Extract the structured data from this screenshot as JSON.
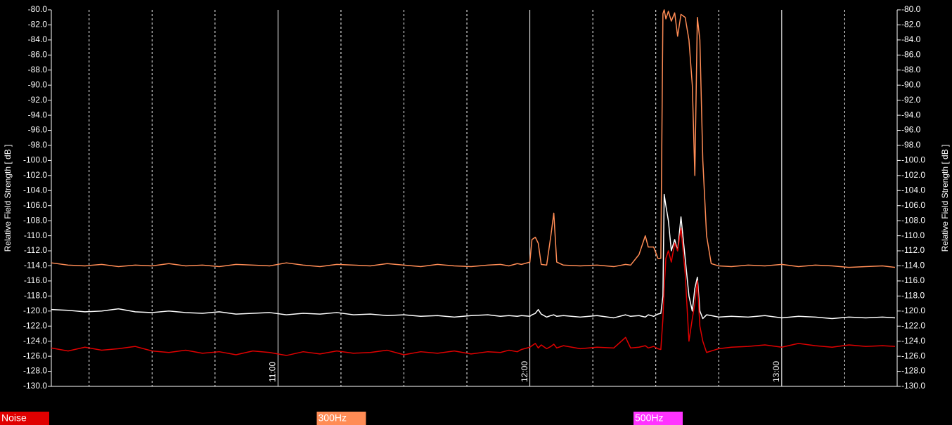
{
  "chart_data": {
    "type": "line",
    "y_label": "Relative Field Strength [ dB ]",
    "xlim": [
      606,
      807.5
    ],
    "xticks": [
      {
        "value": 660,
        "label": "11:00"
      },
      {
        "value": 720,
        "label": "12:00"
      },
      {
        "value": 780,
        "label": "13:00"
      }
    ],
    "x_minor_ticks": [
      615,
      630,
      645,
      675,
      690,
      705,
      735,
      750,
      765,
      795
    ],
    "ylim": [
      -130,
      -80
    ],
    "yticks": [
      {
        "value": -80,
        "label": "-80.0"
      },
      {
        "value": -82,
        "label": "-82.0"
      },
      {
        "value": -84,
        "label": "-84.0"
      },
      {
        "value": -86,
        "label": "-86.0"
      },
      {
        "value": -88,
        "label": "-88.0"
      },
      {
        "value": -90,
        "label": "-90.0"
      },
      {
        "value": -92,
        "label": "-92.0"
      },
      {
        "value": -94,
        "label": "-94.0"
      },
      {
        "value": -96,
        "label": "-96.0"
      },
      {
        "value": -98,
        "label": "-98.0"
      },
      {
        "value": -100,
        "label": "-100.0"
      },
      {
        "value": -102,
        "label": "-102.0"
      },
      {
        "value": -104,
        "label": "-104.0"
      },
      {
        "value": -106,
        "label": "-106.0"
      },
      {
        "value": -108,
        "label": "-108.0"
      },
      {
        "value": -110,
        "label": "-110.0"
      },
      {
        "value": -112,
        "label": "-112.0"
      },
      {
        "value": -114,
        "label": "-114.0"
      },
      {
        "value": -116,
        "label": "-116.0"
      },
      {
        "value": -118,
        "label": "-118.0"
      },
      {
        "value": -120,
        "label": "-120.0"
      },
      {
        "value": -122,
        "label": "-122.0"
      },
      {
        "value": -124,
        "label": "-124.0"
      },
      {
        "value": -126,
        "label": "-126.0"
      },
      {
        "value": -128,
        "label": "-128.0"
      },
      {
        "value": -130,
        "label": "-130.0"
      }
    ],
    "x": [
      606,
      610,
      614,
      618,
      622,
      626,
      630,
      634,
      638,
      642,
      646,
      650,
      654,
      658,
      662,
      666,
      670,
      674,
      678,
      682,
      686,
      690,
      694,
      698,
      702,
      706,
      710,
      713,
      715,
      717,
      718,
      720,
      720.5,
      721.3,
      722,
      722.7,
      724,
      725,
      725.7,
      726.4,
      728,
      732,
      736,
      740,
      742.8,
      744,
      746,
      747.5,
      748.2,
      749.5,
      750.5,
      751.2,
      751.7,
      752,
      752.4,
      753,
      753.7,
      754.5,
      755.2,
      756,
      757,
      757.9,
      758.7,
      759.3,
      759.9,
      760.5,
      761.2,
      762.1,
      763.2,
      765,
      768,
      772,
      776,
      780,
      784,
      788,
      792,
      796,
      800,
      804,
      807
    ],
    "series": [
      {
        "name": "Noise",
        "color": "#e00000",
        "line_color": "#e00000",
        "values": [
          -124.9,
          -125.3,
          -124.8,
          -125.2,
          -125.0,
          -124.7,
          -125.3,
          -125.5,
          -125.2,
          -125.6,
          -125.4,
          -125.8,
          -125.3,
          -125.5,
          -125.9,
          -125.4,
          -125.7,
          -125.3,
          -125.6,
          -125.5,
          -125.2,
          -125.8,
          -125.4,
          -125.6,
          -125.3,
          -125.7,
          -125.4,
          -125.5,
          -125.2,
          -125.4,
          -125.1,
          -124.8,
          -124.6,
          -124.3,
          -124.9,
          -124.5,
          -125.0,
          -124.7,
          -124.4,
          -124.9,
          -124.6,
          -125.0,
          -124.8,
          -124.9,
          -123.5,
          -124.9,
          -124.8,
          -124.6,
          -124.9,
          -124.7,
          -125.0,
          -125.1,
          -121.0,
          -117.0,
          -113.0,
          -112.0,
          -113.5,
          -111.0,
          -112.0,
          -109.0,
          -115.0,
          -124.0,
          -121.0,
          -119.0,
          -116.0,
          -122.0,
          -124.0,
          -125.5,
          -125.3,
          -125.0,
          -124.8,
          -124.7,
          -124.5,
          -124.8,
          -124.3,
          -124.6,
          -124.8,
          -124.5,
          -124.7,
          -124.6,
          -124.7
        ]
      },
      {
        "name": "300Hz",
        "color": "#ff8c55",
        "line_color": "#ff8c55",
        "values": [
          -113.6,
          -113.9,
          -114.0,
          -113.8,
          -114.1,
          -113.9,
          -114.0,
          -113.7,
          -114.0,
          -113.9,
          -114.1,
          -113.8,
          -113.9,
          -114.0,
          -113.6,
          -113.9,
          -114.1,
          -113.8,
          -113.9,
          -114.0,
          -113.7,
          -113.9,
          -114.1,
          -113.8,
          -114.0,
          -114.1,
          -113.9,
          -113.8,
          -114.0,
          -113.7,
          -113.8,
          -113.5,
          -110.5,
          -110.2,
          -111.0,
          -113.8,
          -113.9,
          -110.0,
          -107.0,
          -113.5,
          -113.9,
          -114.0,
          -113.9,
          -114.1,
          -113.8,
          -113.9,
          -112.5,
          -110.0,
          -111.5,
          -111.5,
          -113.0,
          -113.0,
          -80.5,
          -80.0,
          -81.2,
          -80.2,
          -81.5,
          -80.4,
          -83.5,
          -80.6,
          -81.0,
          -84.0,
          -90.0,
          -102.0,
          -81.0,
          -84.0,
          -100.0,
          -110.0,
          -113.7,
          -114.0,
          -114.1,
          -113.9,
          -114.0,
          -113.8,
          -114.1,
          -113.9,
          -114.0,
          -114.2,
          -114.1,
          -114.0,
          -114.2
        ]
      },
      {
        "name": "500Hz",
        "color": "#ff33ff",
        "line_color": "#ffffff",
        "values": [
          -119.8,
          -119.9,
          -120.1,
          -120.0,
          -119.7,
          -120.1,
          -120.2,
          -120.0,
          -120.2,
          -120.3,
          -120.1,
          -120.4,
          -120.3,
          -120.2,
          -120.5,
          -120.3,
          -120.4,
          -120.2,
          -120.5,
          -120.4,
          -120.6,
          -120.5,
          -120.7,
          -120.6,
          -120.8,
          -120.6,
          -120.5,
          -120.7,
          -120.6,
          -120.7,
          -120.6,
          -120.7,
          -120.5,
          -120.3,
          -119.8,
          -120.4,
          -120.8,
          -120.6,
          -120.5,
          -120.7,
          -120.6,
          -120.8,
          -120.6,
          -120.9,
          -120.5,
          -120.7,
          -120.6,
          -120.8,
          -120.5,
          -120.7,
          -120.4,
          -120.3,
          -118.0,
          -104.5,
          -106.0,
          -108.0,
          -112.0,
          -110.5,
          -112.0,
          -107.5,
          -113.0,
          -118.0,
          -120.0,
          -117.0,
          -115.5,
          -120.0,
          -121.0,
          -120.5,
          -120.6,
          -120.8,
          -120.7,
          -120.8,
          -120.6,
          -120.9,
          -120.7,
          -120.8,
          -121.0,
          -120.8,
          -120.9,
          -120.8,
          -120.9
        ]
      }
    ]
  }
}
